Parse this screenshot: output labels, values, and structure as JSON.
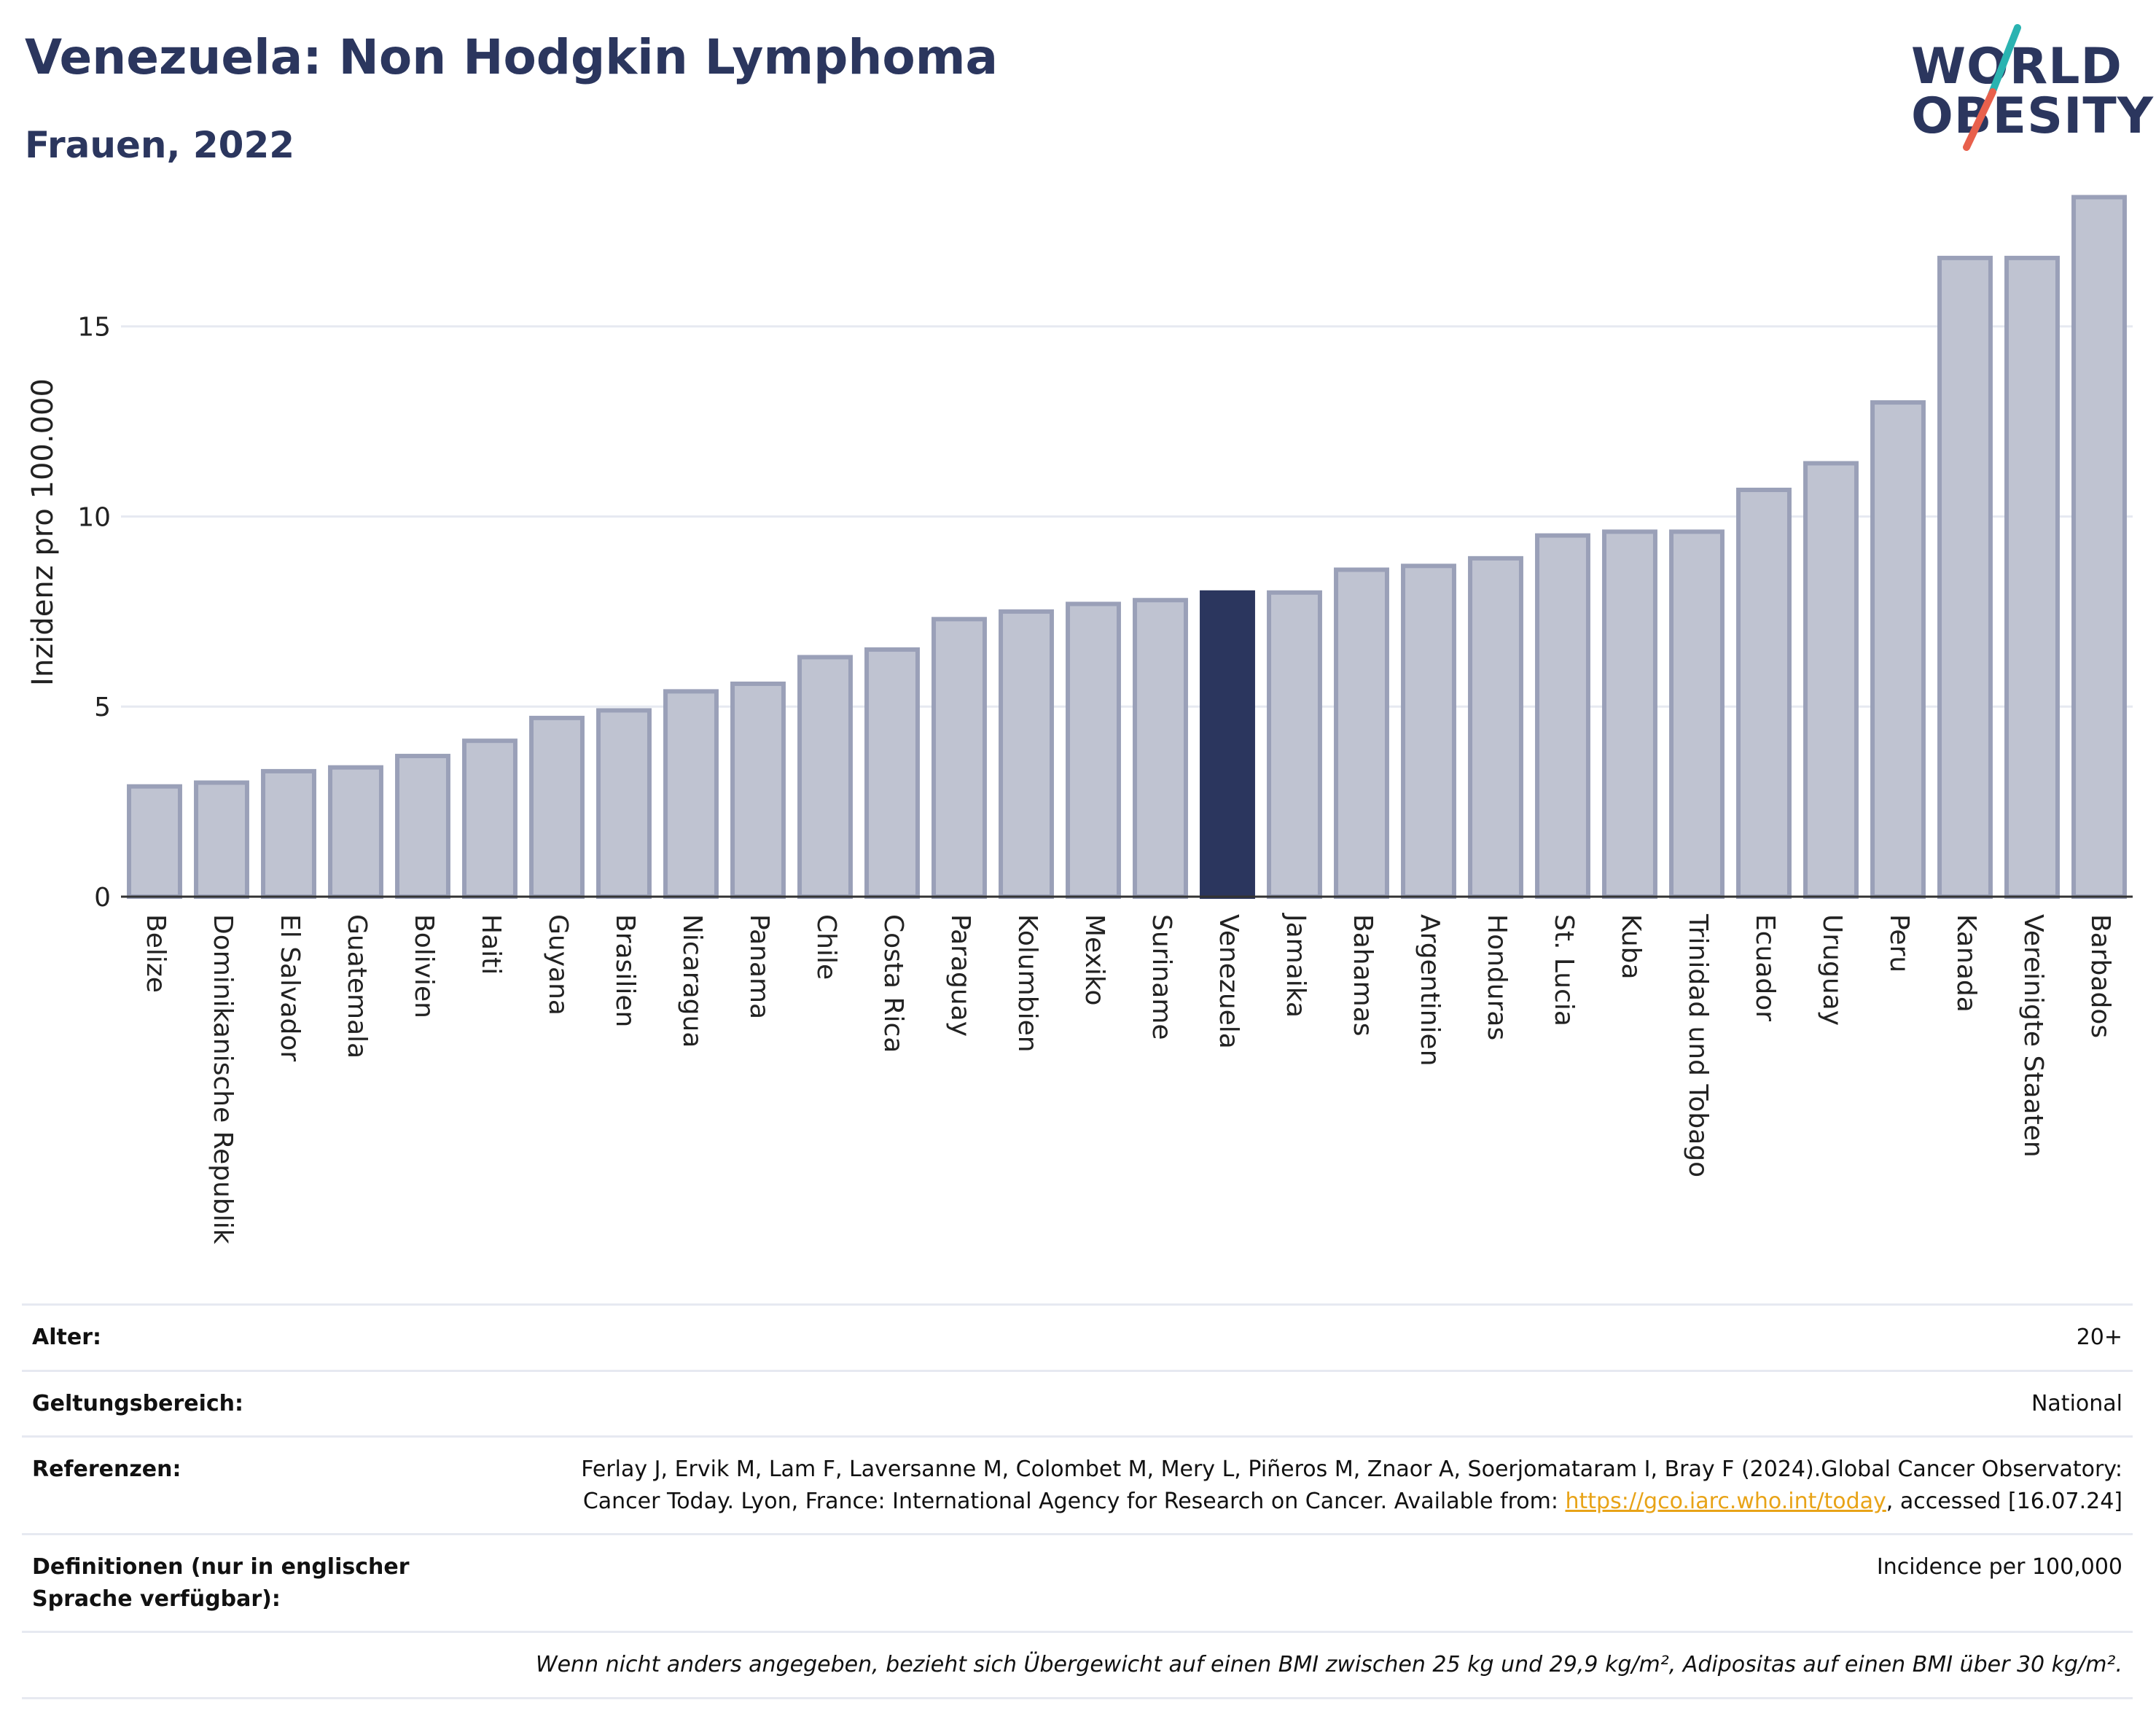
{
  "header": {
    "title": "Venezuela: Non Hodgkin Lymphoma",
    "subtitle": "Frauen, 2022"
  },
  "logo": {
    "line1": "WORLD",
    "line2": "OBESITY",
    "slash_colors": [
      "#2ab3b1",
      "#e8604c"
    ]
  },
  "colors": {
    "bar_default": "#bfc3d1",
    "bar_default_border": "#9aa0b8",
    "bar_highlight": "#2b365e",
    "title": "#2b365e",
    "grid": "#e6e9f1",
    "link": "#e8a317"
  },
  "chart_data": {
    "type": "bar",
    "ylabel": "Inzidenz pro 100.000",
    "ylim": [
      0,
      18.6
    ],
    "yticks": [
      0,
      5,
      10,
      15
    ],
    "grid": true,
    "highlight": "Venezuela",
    "categories": [
      "Belize",
      "Dominikanische Republik",
      "El Salvador",
      "Guatemala",
      "Bolivien",
      "Haiti",
      "Guyana",
      "Brasilien",
      "Nicaragua",
      "Panama",
      "Chile",
      "Costa Rica",
      "Paraguay",
      "Kolumbien",
      "Mexiko",
      "Suriname",
      "Venezuela",
      "Jamaika",
      "Bahamas",
      "Argentinien",
      "Honduras",
      "St. Lucia",
      "Kuba",
      "Trinidad und Tobago",
      "Ecuador",
      "Uruguay",
      "Peru",
      "Kanada",
      "Vereinigte Staaten",
      "Barbados"
    ],
    "values": [
      2.9,
      3.0,
      3.3,
      3.4,
      3.7,
      4.1,
      4.7,
      4.9,
      5.4,
      5.6,
      6.3,
      6.5,
      7.3,
      7.5,
      7.7,
      7.8,
      8.0,
      8.0,
      8.6,
      8.7,
      8.9,
      9.5,
      9.6,
      9.6,
      10.7,
      11.4,
      13.0,
      16.8,
      16.8,
      18.4
    ]
  },
  "info": {
    "age_label": "Alter:",
    "age_value": "20+",
    "scope_label": "Geltungsbereich:",
    "scope_value": "National",
    "references_label": "Referenzen:",
    "references_text": "Ferlay J, Ervik M, Lam F, Laversanne M, Colombet M, Mery L, Piñeros M, Znaor A, Soerjomataram I, Bray F (2024).Global Cancer Observatory: Cancer Today. Lyon, France: International Agency for Research on Cancer. Available from:",
    "references_link": "https://gco.iarc.who.int/today",
    "references_suffix": ", accessed [16.07.24]",
    "definitions_label": "Definitionen (nur in englischer Sprache verfügbar):",
    "definitions_value": "Incidence per 100,000",
    "footnote": "Wenn nicht anders angegeben, bezieht sich Übergewicht auf einen BMI zwischen 25 kg und 29,9 kg/m², Adipositas auf einen BMI über 30 kg/m²."
  }
}
